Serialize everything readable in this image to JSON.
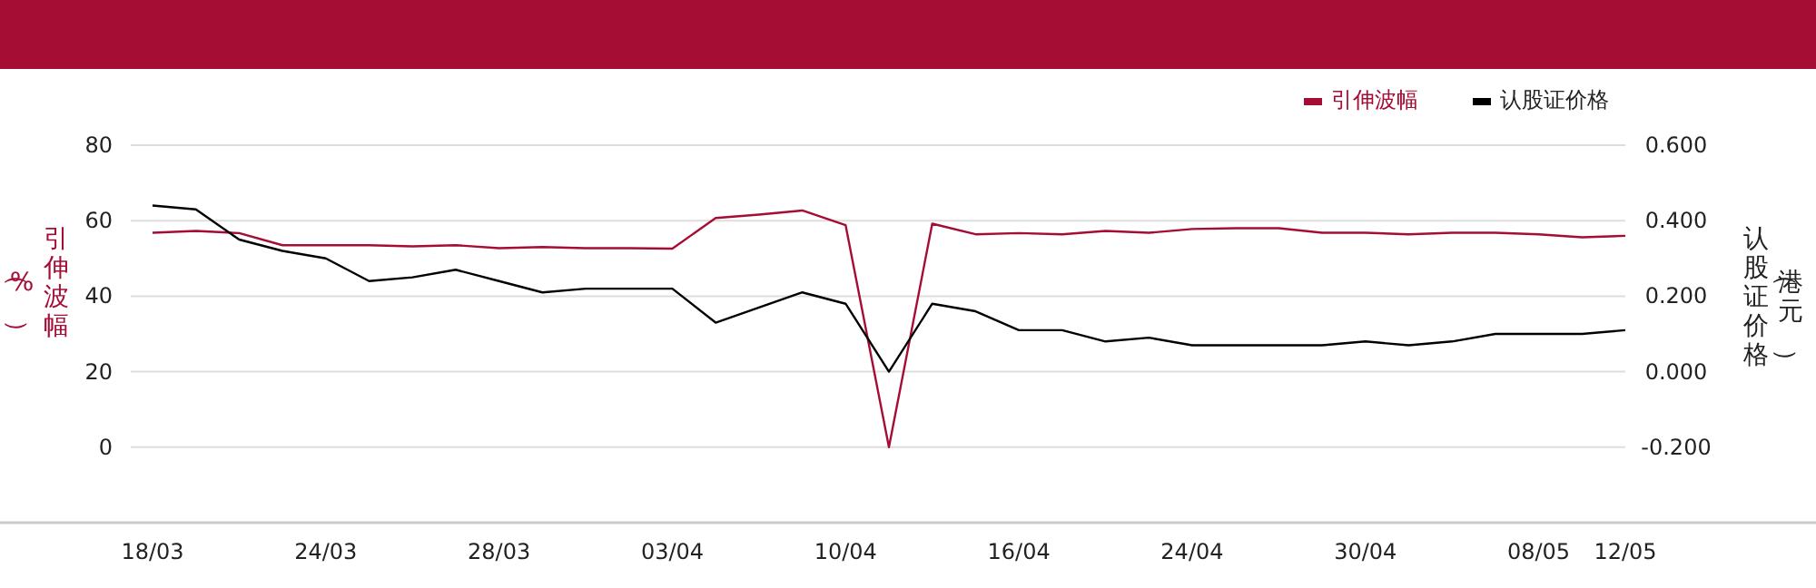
{
  "chart_data": {
    "type": "line",
    "ylabel": "引伸波幅（%）",
    "y2label": "认股证价格（港元）",
    "categories": [
      "18/03",
      null,
      null,
      null,
      "24/03",
      null,
      null,
      null,
      "28/03",
      null,
      null,
      null,
      "03/04",
      null,
      null,
      null,
      "10/04",
      null,
      null,
      null,
      "16/04",
      null,
      null,
      null,
      "24/04",
      null,
      null,
      null,
      "30/04",
      null,
      null,
      null,
      "08/05",
      null,
      "12/05"
    ],
    "series": [
      {
        "name": "引伸波幅",
        "color": "#a50d35",
        "values": [
          56.8,
          57.3,
          56.7,
          53.5,
          53.5,
          53.5,
          53.2,
          53.5,
          52.7,
          53.0,
          52.7,
          52.7,
          52.6,
          60.7,
          61.6,
          62.7,
          58.8,
          0,
          59.2,
          56.4,
          56.7,
          56.4,
          57.3,
          56.8,
          57.8,
          58.0,
          58.0,
          56.8,
          56.8,
          56.4,
          56.8,
          56.8,
          56.4,
          55.6,
          56.0
        ]
      },
      {
        "name": "认股证价格",
        "color": "#000000",
        "axis": "y2",
        "values": [
          0.44,
          0.43,
          0.35,
          0.32,
          0.3,
          0.24,
          0.25,
          0.27,
          0.24,
          0.21,
          0.22,
          0.22,
          0.22,
          0.13,
          0.17,
          0.21,
          0.18,
          0.0,
          0.18,
          0.16,
          0.11,
          0.11,
          0.08,
          0.09,
          0.07,
          0.07,
          0.07,
          0.07,
          0.08,
          0.07,
          0.08,
          0.1,
          0.1,
          0.1,
          0.11
        ]
      }
    ],
    "ylim": [
      -20,
      80
    ],
    "yticks": [
      0,
      20,
      40,
      60,
      80
    ],
    "y2lim": [
      -0.4,
      0.6
    ],
    "y2ticks": [
      {
        "value": -0.2,
        "label": "-0.200"
      },
      {
        "value": 0,
        "label": "0.000"
      },
      {
        "value": 0.2,
        "label": "0.200"
      },
      {
        "value": 0.4,
        "label": "0.400"
      },
      {
        "value": 0.6,
        "label": "0.600"
      }
    ],
    "grid": "y",
    "legend": "top right",
    "marker": "none",
    "line_style": "solid"
  }
}
